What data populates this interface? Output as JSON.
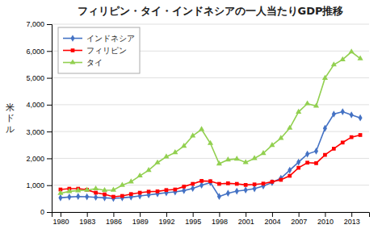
{
  "chart_data": {
    "type": "line",
    "title": "フィリピン・タイ・インドネシアの一人当たりGDP推移",
    "y_label": "米ドル",
    "x": [
      1980,
      1981,
      1982,
      1983,
      1984,
      1985,
      1986,
      1987,
      1988,
      1989,
      1990,
      1991,
      1992,
      1993,
      1994,
      1995,
      1996,
      1997,
      1998,
      1999,
      2000,
      2001,
      2002,
      2003,
      2004,
      2005,
      2006,
      2007,
      2008,
      2009,
      2010,
      2011,
      2012,
      2013,
      2014
    ],
    "series": [
      {
        "name": "インドネシア",
        "color": "#4472C4",
        "marker": "diamond",
        "values": [
          530,
          560,
          580,
          570,
          550,
          530,
          510,
          530,
          560,
          600,
          640,
          680,
          720,
          750,
          800,
          880,
          1000,
          1100,
          580,
          700,
          780,
          820,
          870,
          970,
          1100,
          1260,
          1560,
          1860,
          2160,
          2270,
          3120,
          3650,
          3740,
          3620,
          3510
        ]
      },
      {
        "name": "フィリピン",
        "color": "#FF0000",
        "marker": "square",
        "values": [
          840,
          870,
          870,
          830,
          720,
          660,
          570,
          600,
          670,
          720,
          760,
          770,
          820,
          840,
          950,
          1050,
          1160,
          1150,
          1050,
          1070,
          1050,
          1010,
          1030,
          1060,
          1130,
          1200,
          1350,
          1650,
          1840,
          1820,
          2130,
          2360,
          2590,
          2790,
          2870
        ]
      },
      {
        "name": "タイ",
        "color": "#92D050",
        "marker": "triangle",
        "values": [
          700,
          770,
          800,
          820,
          870,
          810,
          820,
          1000,
          1130,
          1350,
          1560,
          1840,
          2060,
          2220,
          2460,
          2840,
          3080,
          2560,
          1800,
          1950,
          1980,
          1850,
          2000,
          2190,
          2490,
          2750,
          3130,
          3730,
          4040,
          3950,
          4990,
          5490,
          5680,
          5970,
          5720
        ]
      }
    ],
    "xlim": [
      1979,
      2015
    ],
    "xticks": [
      1980,
      1983,
      1986,
      1989,
      1992,
      1995,
      1998,
      2001,
      2004,
      2007,
      2010,
      2013
    ],
    "ylim": [
      0,
      7000
    ],
    "yticks": [
      0,
      {
        "value": 1000,
        "label": "1,000"
      },
      {
        "value": 2000,
        "label": "2,000"
      },
      {
        "value": 3000,
        "label": "3,000"
      },
      {
        "value": 4000,
        "label": "4,000"
      },
      {
        "value": 5000,
        "label": "5,000"
      },
      {
        "value": 6000,
        "label": "6,000"
      },
      {
        "value": 7000,
        "label": "7,000"
      }
    ],
    "grid": true,
    "legend": "upper left"
  }
}
